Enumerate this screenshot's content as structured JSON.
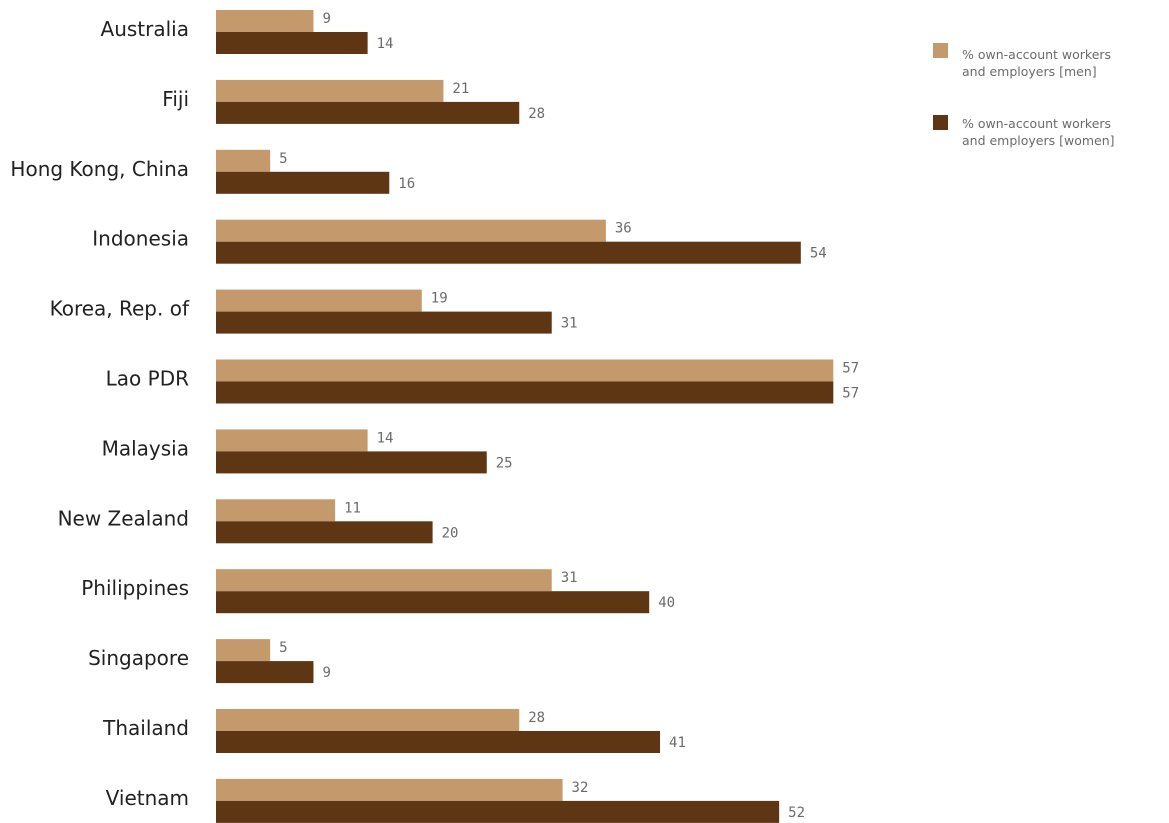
{
  "chart_data": {
    "type": "bar",
    "orientation": "horizontal",
    "title": "",
    "xlabel": "",
    "ylabel": "",
    "xlim": [
      0,
      57
    ],
    "grid": false,
    "legend_position": "top-right",
    "categories": [
      "Australia",
      "Fiji",
      "Hong Kong, China",
      "Indonesia",
      "Korea, Rep. of",
      "Lao PDR",
      "Malaysia",
      "New Zealand",
      "Philippines",
      "Singapore",
      "Thailand",
      "Vietnam"
    ],
    "series": [
      {
        "key": "men",
        "name_lines": [
          "% own-account workers",
          "and employers [men]"
        ],
        "color": "#c49a6c",
        "values": [
          9,
          21,
          5,
          36,
          19,
          57,
          14,
          11,
          31,
          5,
          28,
          32
        ]
      },
      {
        "key": "women",
        "name_lines": [
          "% own-account workers",
          "and employers [women]"
        ],
        "color": "#5e3614",
        "values": [
          14,
          28,
          16,
          54,
          31,
          57,
          25,
          20,
          40,
          9,
          41,
          52
        ]
      }
    ]
  }
}
